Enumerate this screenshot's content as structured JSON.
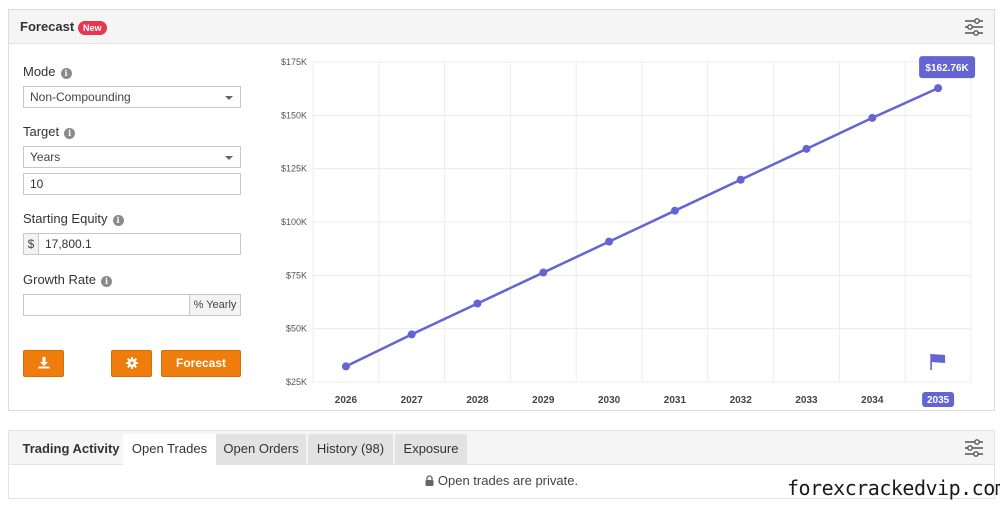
{
  "forecast": {
    "title": "Forecast",
    "badge": "New",
    "mode": {
      "label": "Mode",
      "value": "Non-Compounding"
    },
    "target": {
      "label": "Target",
      "value": "Years",
      "input_value": "10"
    },
    "starting_equity": {
      "label": "Starting Equity",
      "prefix": "$",
      "value": "17,800.1"
    },
    "growth_rate": {
      "label": "Growth Rate",
      "value": "",
      "suffix": "% Yearly"
    },
    "buttons": {
      "download_icon": "download-icon",
      "settings_icon": "gear-icon",
      "forecast_label": "Forecast"
    }
  },
  "chart_data": {
    "type": "line",
    "x": [
      "2026",
      "2027",
      "2028",
      "2029",
      "2030",
      "2031",
      "2032",
      "2033",
      "2034",
      "2035"
    ],
    "y_tick_labels": [
      "$25K",
      "$50K",
      "$75K",
      "$100K",
      "$125K",
      "$150K",
      "$175K"
    ],
    "y_ticks": [
      25000,
      50000,
      75000,
      100000,
      125000,
      150000,
      175000
    ],
    "ylim": [
      25000,
      175000
    ],
    "series": [
      {
        "values": [
          32300,
          47300,
          61800,
          76300,
          90800,
          105300,
          119800,
          134300,
          148800,
          162760
        ]
      }
    ],
    "last_label": "$162.76K",
    "highlighted_x": "2035",
    "color": "#6464d2",
    "grid": true
  },
  "activity": {
    "tabs": [
      {
        "label": "Trading Activity"
      },
      {
        "label": "Open Trades"
      },
      {
        "label": "Open Orders"
      },
      {
        "label": "History (98)"
      },
      {
        "label": "Exposure"
      }
    ],
    "private_message": "Open trades are private."
  },
  "watermark": "forexcrackedvip.com"
}
